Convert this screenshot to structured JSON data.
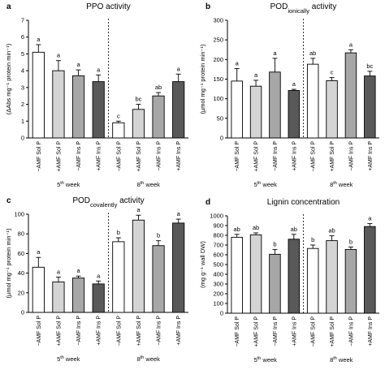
{
  "colors": {
    "bars": [
      "#ffffff",
      "#d4d4d4",
      "#a7a7a7",
      "#595959"
    ],
    "stroke": "#000000"
  },
  "chart_data": [
    {
      "type": "bar",
      "panel": "a",
      "title": "PPO activity",
      "title_sub": "",
      "title_tail": "",
      "ylabel": "(ΔAbs mg⁻¹ protein min⁻¹)",
      "ylim": [
        0,
        7
      ],
      "yticks": [
        "0",
        "1",
        "2",
        "3",
        "4",
        "5",
        "6",
        "7"
      ],
      "categories": [
        "−AMF Sol P",
        "+AMF Sol P",
        "−AMF Ins P",
        "+AMF Ins P",
        "−AMF Sol P",
        "+AMF Sol P",
        "−AMF Ins P",
        "+AMF Ins P"
      ],
      "groups": [
        "5th week",
        "8th week"
      ],
      "values": [
        5.1,
        4.0,
        3.7,
        3.35,
        0.9,
        1.7,
        2.5,
        3.35
      ],
      "errors": [
        0.45,
        0.6,
        0.35,
        0.4,
        0.1,
        0.3,
        0.2,
        0.45
      ],
      "letters": [
        "a",
        "a",
        "a",
        "a",
        "c",
        "bc",
        "ab",
        "a"
      ]
    },
    {
      "type": "bar",
      "panel": "b",
      "title": "POD",
      "title_sub": "ionically",
      "title_tail": " activity",
      "ylabel": "(μmol mg⁻¹ protein min⁻¹)",
      "ylim": [
        0,
        300
      ],
      "yticks": [
        "0",
        "50",
        "100",
        "150",
        "200",
        "250",
        "300"
      ],
      "categories": [
        "−AMF Sol P",
        "+AMF Sol P",
        "−AMF Ins P",
        "+AMF Ins P",
        "−AMF Sol P",
        "+AMF Sol P",
        "−AMF Ins P",
        "+AMF Ins P"
      ],
      "groups": [
        "5th week",
        "8th week"
      ],
      "values": [
        145,
        132,
        168,
        121,
        188,
        146,
        217,
        158
      ],
      "errors": [
        32,
        15,
        35,
        3,
        15,
        8,
        8,
        12
      ],
      "letters": [
        "a",
        "a",
        "a",
        "a",
        "ab",
        "c",
        "a",
        "bc"
      ]
    },
    {
      "type": "bar",
      "panel": "c",
      "title": "POD",
      "title_sub": "covalently",
      "title_tail": " activity",
      "ylabel": "(μmol mg⁻¹ protein min⁻¹)",
      "ylim": [
        0,
        100
      ],
      "yticks": [
        "0",
        "20",
        "40",
        "60",
        "80",
        "100"
      ],
      "categories": [
        "−AMF Sol P",
        "+AMF Sol P",
        "−AMF Ins P",
        "+AMF Ins P",
        "−AMF Sol P",
        "+AMF Sol P",
        "−AMF Ins P",
        "+AMF Ins P"
      ],
      "groups": [
        "5th week",
        "8th week"
      ],
      "values": [
        46,
        31,
        35,
        29,
        72,
        94,
        68,
        91
      ],
      "errors": [
        10,
        5,
        2,
        3,
        4,
        5,
        5,
        4
      ],
      "letters": [
        "a",
        "a",
        "a",
        "a",
        "b",
        "a",
        "b",
        "a"
      ]
    },
    {
      "type": "bar",
      "panel": "d",
      "title": "Lignin concentration",
      "title_sub": "",
      "title_tail": "",
      "ylabel": "(mg g⁻¹ wall DW)",
      "ylim": [
        0,
        1000
      ],
      "yticks": [
        "0",
        "100",
        "200",
        "300",
        "400",
        "500",
        "600",
        "700",
        "800",
        "900",
        "1000"
      ],
      "categories": [
        "−AMF Sol P",
        "+AMF Sol P",
        "−AMF Ins P",
        "+AMF Ins P",
        "−AMF Sol P",
        "+AMF Sol P",
        "−AMF Ins P",
        "+AMF Ins P"
      ],
      "groups": [
        "5th week",
        "8th week"
      ],
      "values": [
        780,
        805,
        605,
        760,
        665,
        745,
        655,
        890
      ],
      "errors": [
        30,
        20,
        50,
        50,
        35,
        50,
        25,
        30
      ],
      "letters": [
        "ab",
        "ab",
        "b",
        "ab",
        "b",
        "ab",
        "b",
        "a"
      ]
    }
  ]
}
